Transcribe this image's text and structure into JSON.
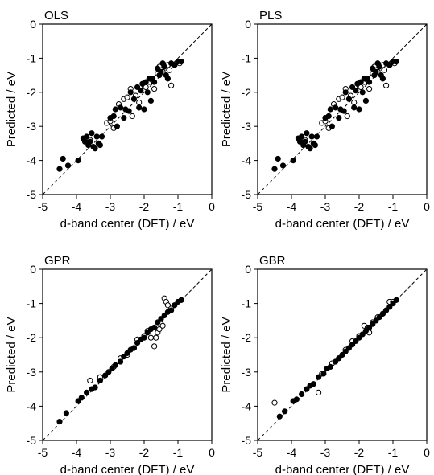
{
  "figure": {
    "panel_count": 4
  },
  "chart_data": [
    {
      "type": "scatter",
      "title": "OLS",
      "xlabel": "d-band center (DFT) / eV",
      "ylabel": "Predicted / eV",
      "xlim": [
        -5,
        0
      ],
      "ylim": [
        -5,
        0
      ],
      "xticks": [
        "-5",
        "-4",
        "-3",
        "-2",
        "-1",
        "0"
      ],
      "yticks": [
        "-5",
        "-4",
        "-3",
        "-2",
        "-1",
        "0"
      ],
      "reference_line": "y = x (dashed)",
      "grid": false,
      "series": [
        {
          "marker": "filled circle",
          "points": [
            [
              -4.5,
              -4.25
            ],
            [
              -4.4,
              -3.95
            ],
            [
              -4.25,
              -4.15
            ],
            [
              -3.95,
              -4.0
            ],
            [
              -3.8,
              -3.35
            ],
            [
              -3.75,
              -3.45
            ],
            [
              -3.7,
              -3.3
            ],
            [
              -3.65,
              -3.55
            ],
            [
              -3.6,
              -3.45
            ],
            [
              -3.55,
              -3.2
            ],
            [
              -3.5,
              -3.6
            ],
            [
              -3.45,
              -3.65
            ],
            [
              -3.4,
              -3.3
            ],
            [
              -3.35,
              -3.5
            ],
            [
              -3.3,
              -3.55
            ],
            [
              -3.25,
              -3.3
            ],
            [
              -3.0,
              -2.75
            ],
            [
              -2.9,
              -2.7
            ],
            [
              -2.85,
              -2.5
            ],
            [
              -2.8,
              -3.0
            ],
            [
              -2.7,
              -2.45
            ],
            [
              -2.6,
              -2.75
            ],
            [
              -2.55,
              -2.5
            ],
            [
              -2.45,
              -2.55
            ],
            [
              -2.4,
              -2.0
            ],
            [
              -2.3,
              -2.2
            ],
            [
              -2.2,
              -1.85
            ],
            [
              -2.15,
              -2.45
            ],
            [
              -2.1,
              -1.95
            ],
            [
              -2.05,
              -1.75
            ],
            [
              -2.0,
              -2.5
            ],
            [
              -1.95,
              -1.7
            ],
            [
              -1.9,
              -2.0
            ],
            [
              -1.85,
              -1.6
            ],
            [
              -1.8,
              -2.25
            ],
            [
              -1.75,
              -1.6
            ],
            [
              -1.7,
              -1.7
            ],
            [
              -1.6,
              -1.3
            ],
            [
              -1.55,
              -1.5
            ],
            [
              -1.5,
              -1.4
            ],
            [
              -1.45,
              -1.15
            ],
            [
              -1.4,
              -1.25
            ],
            [
              -1.35,
              -1.5
            ],
            [
              -1.3,
              -1.6
            ],
            [
              -1.2,
              -1.15
            ],
            [
              -1.1,
              -1.2
            ],
            [
              -1.0,
              -1.1
            ],
            [
              -0.9,
              -1.1
            ]
          ]
        },
        {
          "marker": "open circle",
          "points": [
            [
              -3.6,
              -3.4
            ],
            [
              -3.1,
              -2.9
            ],
            [
              -3.0,
              -2.85
            ],
            [
              -2.9,
              -3.05
            ],
            [
              -2.75,
              -2.35
            ],
            [
              -2.6,
              -2.2
            ],
            [
              -2.5,
              -2.15
            ],
            [
              -2.4,
              -1.9
            ],
            [
              -2.35,
              -2.7
            ],
            [
              -2.25,
              -2.1
            ],
            [
              -2.15,
              -2.3
            ],
            [
              -2.0,
              -1.8
            ],
            [
              -1.95,
              -1.85
            ],
            [
              -1.85,
              -1.7
            ],
            [
              -1.75,
              -1.65
            ],
            [
              -1.7,
              -1.9
            ],
            [
              -1.6,
              -1.45
            ],
            [
              -1.55,
              -1.25
            ],
            [
              -1.5,
              -1.35
            ],
            [
              -1.45,
              -1.4
            ],
            [
              -1.4,
              -1.2
            ],
            [
              -1.3,
              -1.2
            ],
            [
              -1.25,
              -1.35
            ],
            [
              -1.2,
              -1.8
            ],
            [
              -1.1,
              -1.2
            ],
            [
              -0.95,
              -1.15
            ]
          ]
        }
      ]
    },
    {
      "type": "scatter",
      "title": "PLS",
      "xlabel": "d-band center (DFT) / eV",
      "ylabel": "Predicted / eV",
      "xlim": [
        -5,
        0
      ],
      "ylim": [
        -5,
        0
      ],
      "xticks": [
        "-5",
        "-4",
        "-3",
        "-2",
        "-1",
        "0"
      ],
      "yticks": [
        "-5",
        "-4",
        "-3",
        "-2",
        "-1",
        "0"
      ],
      "reference_line": "y = x (dashed)",
      "grid": false,
      "series": [
        {
          "marker": "filled circle",
          "points": [
            [
              -4.5,
              -4.25
            ],
            [
              -4.4,
              -3.95
            ],
            [
              -4.25,
              -4.15
            ],
            [
              -3.95,
              -4.0
            ],
            [
              -3.8,
              -3.35
            ],
            [
              -3.75,
              -3.45
            ],
            [
              -3.7,
              -3.3
            ],
            [
              -3.65,
              -3.55
            ],
            [
              -3.6,
              -3.45
            ],
            [
              -3.55,
              -3.2
            ],
            [
              -3.5,
              -3.6
            ],
            [
              -3.45,
              -3.65
            ],
            [
              -3.4,
              -3.3
            ],
            [
              -3.35,
              -3.5
            ],
            [
              -3.3,
              -3.55
            ],
            [
              -3.25,
              -3.3
            ],
            [
              -3.0,
              -2.75
            ],
            [
              -2.9,
              -2.7
            ],
            [
              -2.85,
              -2.5
            ],
            [
              -2.8,
              -3.0
            ],
            [
              -2.7,
              -2.45
            ],
            [
              -2.6,
              -2.75
            ],
            [
              -2.55,
              -2.5
            ],
            [
              -2.45,
              -2.55
            ],
            [
              -2.4,
              -2.0
            ],
            [
              -2.3,
              -2.2
            ],
            [
              -2.2,
              -1.85
            ],
            [
              -2.15,
              -2.45
            ],
            [
              -2.1,
              -1.95
            ],
            [
              -2.05,
              -1.75
            ],
            [
              -2.0,
              -2.5
            ],
            [
              -1.95,
              -1.7
            ],
            [
              -1.9,
              -2.0
            ],
            [
              -1.85,
              -1.6
            ],
            [
              -1.8,
              -2.25
            ],
            [
              -1.75,
              -1.6
            ],
            [
              -1.7,
              -1.7
            ],
            [
              -1.6,
              -1.3
            ],
            [
              -1.55,
              -1.5
            ],
            [
              -1.5,
              -1.4
            ],
            [
              -1.45,
              -1.15
            ],
            [
              -1.4,
              -1.25
            ],
            [
              -1.35,
              -1.5
            ],
            [
              -1.3,
              -1.6
            ],
            [
              -1.2,
              -1.15
            ],
            [
              -1.1,
              -1.2
            ],
            [
              -1.0,
              -1.1
            ],
            [
              -0.9,
              -1.1
            ]
          ]
        },
        {
          "marker": "open circle",
          "points": [
            [
              -3.6,
              -3.4
            ],
            [
              -3.1,
              -2.9
            ],
            [
              -3.0,
              -2.85
            ],
            [
              -2.9,
              -3.05
            ],
            [
              -2.75,
              -2.35
            ],
            [
              -2.6,
              -2.2
            ],
            [
              -2.5,
              -2.15
            ],
            [
              -2.4,
              -1.9
            ],
            [
              -2.35,
              -2.7
            ],
            [
              -2.25,
              -2.1
            ],
            [
              -2.15,
              -2.3
            ],
            [
              -2.0,
              -1.8
            ],
            [
              -1.95,
              -1.85
            ],
            [
              -1.85,
              -1.7
            ],
            [
              -1.75,
              -1.65
            ],
            [
              -1.7,
              -1.9
            ],
            [
              -1.6,
              -1.45
            ],
            [
              -1.55,
              -1.25
            ],
            [
              -1.5,
              -1.35
            ],
            [
              -1.45,
              -1.4
            ],
            [
              -1.4,
              -1.2
            ],
            [
              -1.3,
              -1.2
            ],
            [
              -1.25,
              -1.35
            ],
            [
              -1.2,
              -1.8
            ],
            [
              -1.1,
              -1.2
            ],
            [
              -0.95,
              -1.15
            ]
          ]
        }
      ]
    },
    {
      "type": "scatter",
      "title": "GPR",
      "xlabel": "d-band center (DFT) / eV",
      "ylabel": "Predicted / eV",
      "xlim": [
        -5,
        0
      ],
      "ylim": [
        -5,
        0
      ],
      "xticks": [
        "-5",
        "-4",
        "-3",
        "-2",
        "-1",
        "0"
      ],
      "yticks": [
        "-5",
        "-4",
        "-3",
        "-2",
        "-1",
        "0"
      ],
      "reference_line": "y = x (dashed)",
      "grid": false,
      "series": [
        {
          "marker": "filled circle",
          "points": [
            [
              -4.5,
              -4.45
            ],
            [
              -4.3,
              -4.2
            ],
            [
              -3.95,
              -3.85
            ],
            [
              -3.85,
              -3.75
            ],
            [
              -3.7,
              -3.6
            ],
            [
              -3.55,
              -3.5
            ],
            [
              -3.45,
              -3.45
            ],
            [
              -3.3,
              -3.25
            ],
            [
              -3.15,
              -3.1
            ],
            [
              -3.05,
              -3.0
            ],
            [
              -2.95,
              -2.9
            ],
            [
              -2.85,
              -2.8
            ],
            [
              -2.7,
              -2.7
            ],
            [
              -2.6,
              -2.55
            ],
            [
              -2.5,
              -2.45
            ],
            [
              -2.4,
              -2.35
            ],
            [
              -2.3,
              -2.3
            ],
            [
              -2.2,
              -2.15
            ],
            [
              -2.1,
              -2.05
            ],
            [
              -2.0,
              -2.0
            ],
            [
              -1.9,
              -1.85
            ],
            [
              -1.8,
              -1.75
            ],
            [
              -1.7,
              -1.7
            ],
            [
              -1.6,
              -1.55
            ],
            [
              -1.5,
              -1.45
            ],
            [
              -1.4,
              -1.35
            ],
            [
              -1.3,
              -1.25
            ],
            [
              -1.2,
              -1.2
            ],
            [
              -1.1,
              -1.05
            ],
            [
              -1.0,
              -0.95
            ],
            [
              -0.9,
              -0.9
            ]
          ]
        },
        {
          "marker": "open circle",
          "points": [
            [
              -3.6,
              -3.25
            ],
            [
              -3.3,
              -3.15
            ],
            [
              -2.9,
              -2.85
            ],
            [
              -2.7,
              -2.6
            ],
            [
              -2.5,
              -2.5
            ],
            [
              -2.3,
              -2.3
            ],
            [
              -2.2,
              -2.05
            ],
            [
              -2.0,
              -1.95
            ],
            [
              -1.9,
              -1.8
            ],
            [
              -1.8,
              -2.0
            ],
            [
              -1.7,
              -2.25
            ],
            [
              -1.65,
              -2.0
            ],
            [
              -1.6,
              -1.85
            ],
            [
              -1.55,
              -1.75
            ],
            [
              -1.5,
              -1.6
            ],
            [
              -1.45,
              -1.65
            ],
            [
              -1.4,
              -0.85
            ],
            [
              -1.35,
              -0.95
            ],
            [
              -1.3,
              -1.05
            ],
            [
              -1.2,
              -1.15
            ]
          ]
        }
      ]
    },
    {
      "type": "scatter",
      "title": "GBR",
      "xlabel": "d-band center (DFT) / eV",
      "ylabel": "Predicted / eV",
      "xlim": [
        -5,
        0
      ],
      "ylim": [
        -5,
        0
      ],
      "xticks": [
        "-5",
        "-4",
        "-3",
        "-2",
        "-1",
        "0"
      ],
      "yticks": [
        "-5",
        "-4",
        "-3",
        "-2",
        "-1",
        "0"
      ],
      "reference_line": "y = x (dashed)",
      "grid": false,
      "series": [
        {
          "marker": "filled circle",
          "points": [
            [
              -4.35,
              -4.3
            ],
            [
              -4.2,
              -4.15
            ],
            [
              -3.95,
              -3.85
            ],
            [
              -3.85,
              -3.8
            ],
            [
              -3.7,
              -3.65
            ],
            [
              -3.55,
              -3.5
            ],
            [
              -3.45,
              -3.4
            ],
            [
              -3.35,
              -3.35
            ],
            [
              -3.2,
              -3.15
            ],
            [
              -3.05,
              -3.05
            ],
            [
              -2.95,
              -2.9
            ],
            [
              -2.85,
              -2.85
            ],
            [
              -2.7,
              -2.7
            ],
            [
              -2.6,
              -2.6
            ],
            [
              -2.5,
              -2.5
            ],
            [
              -2.4,
              -2.4
            ],
            [
              -2.3,
              -2.3
            ],
            [
              -2.2,
              -2.2
            ],
            [
              -2.1,
              -2.1
            ],
            [
              -2.0,
              -2.0
            ],
            [
              -1.9,
              -1.9
            ],
            [
              -1.8,
              -1.8
            ],
            [
              -1.7,
              -1.7
            ],
            [
              -1.6,
              -1.6
            ],
            [
              -1.5,
              -1.5
            ],
            [
              -1.4,
              -1.4
            ],
            [
              -1.3,
              -1.3
            ],
            [
              -1.2,
              -1.2
            ],
            [
              -1.1,
              -1.1
            ],
            [
              -1.0,
              -1.0
            ],
            [
              -0.9,
              -0.9
            ]
          ]
        },
        {
          "marker": "open circle",
          "points": [
            [
              -4.5,
              -3.9
            ],
            [
              -3.2,
              -3.6
            ],
            [
              -3.1,
              -3.05
            ],
            [
              -2.8,
              -2.75
            ],
            [
              -2.6,
              -2.6
            ],
            [
              -2.4,
              -2.35
            ],
            [
              -2.2,
              -2.1
            ],
            [
              -2.0,
              -1.95
            ],
            [
              -1.85,
              -1.65
            ],
            [
              -1.75,
              -1.7
            ],
            [
              -1.7,
              -1.85
            ],
            [
              -1.6,
              -1.55
            ],
            [
              -1.45,
              -1.4
            ],
            [
              -1.3,
              -1.3
            ],
            [
              -1.1,
              -0.95
            ],
            [
              -1.0,
              -0.95
            ]
          ]
        }
      ]
    }
  ]
}
